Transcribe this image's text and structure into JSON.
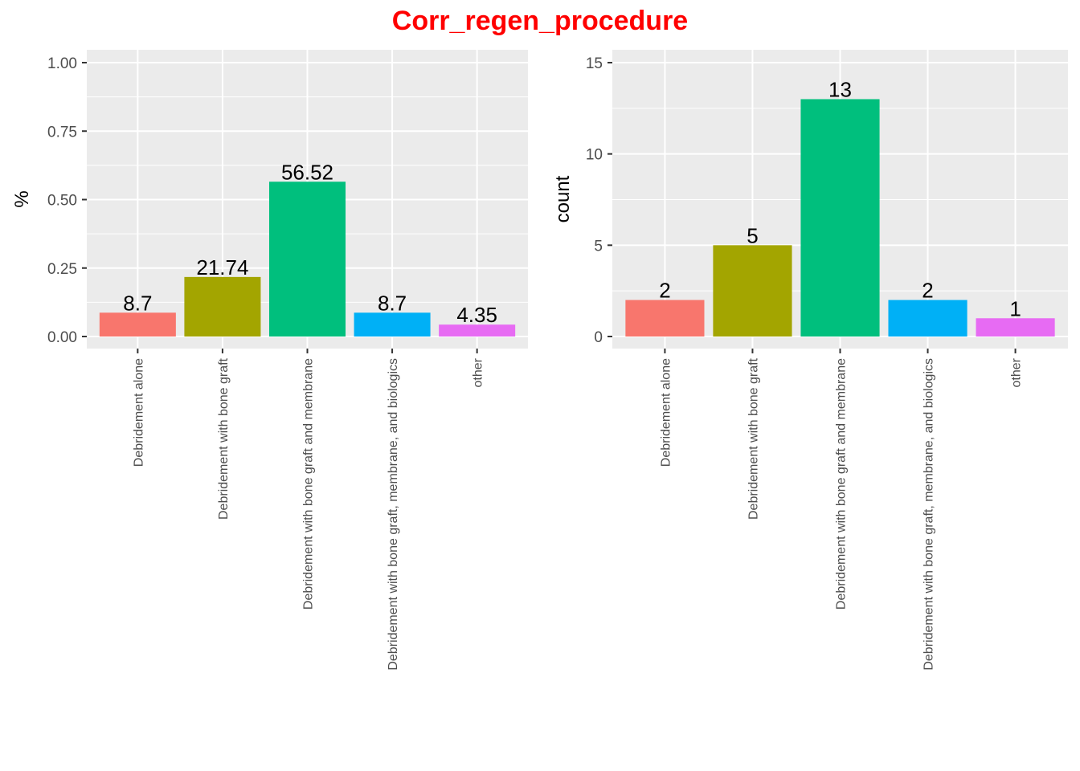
{
  "title": "Corr_regen_procedure",
  "chart_data": [
    {
      "type": "bar",
      "categories": [
        "Debridement alone",
        "Debridement with bone graft",
        "Debridement with bone graft and membrane",
        "Debridement with bone graft, membrane, and biologics",
        "other"
      ],
      "values": [
        0.087,
        0.2174,
        0.5652,
        0.087,
        0.0435
      ],
      "data_labels": [
        "8.7",
        "21.74",
        "56.52",
        "8.7",
        "4.35"
      ],
      "ylabel": "%",
      "ylim": [
        0,
        1.0
      ],
      "yticks": [
        0,
        0.25,
        0.5,
        0.75,
        1.0
      ],
      "ytick_labels": [
        "0.00",
        "0.25",
        "0.50",
        "0.75",
        "1.00"
      ],
      "grid": true
    },
    {
      "type": "bar",
      "categories": [
        "Debridement alone",
        "Debridement with bone graft",
        "Debridement with bone graft and membrane",
        "Debridement with bone graft, membrane, and biologics",
        "other"
      ],
      "values": [
        2,
        5,
        13,
        2,
        1
      ],
      "data_labels": [
        "2",
        "5",
        "13",
        "2",
        "1"
      ],
      "ylabel": "count",
      "ylim": [
        0,
        15
      ],
      "yticks": [
        0,
        5,
        10,
        15
      ],
      "ytick_labels": [
        "0",
        "5",
        "10",
        "15"
      ],
      "grid": true
    }
  ],
  "colors": {
    "bars": [
      "#F8766D",
      "#A3A500",
      "#00BF7D",
      "#00B0F6",
      "#E76BF3"
    ],
    "panel_background": "#EBEBEB",
    "grid": "#FFFFFF",
    "title": "#FF0000"
  }
}
